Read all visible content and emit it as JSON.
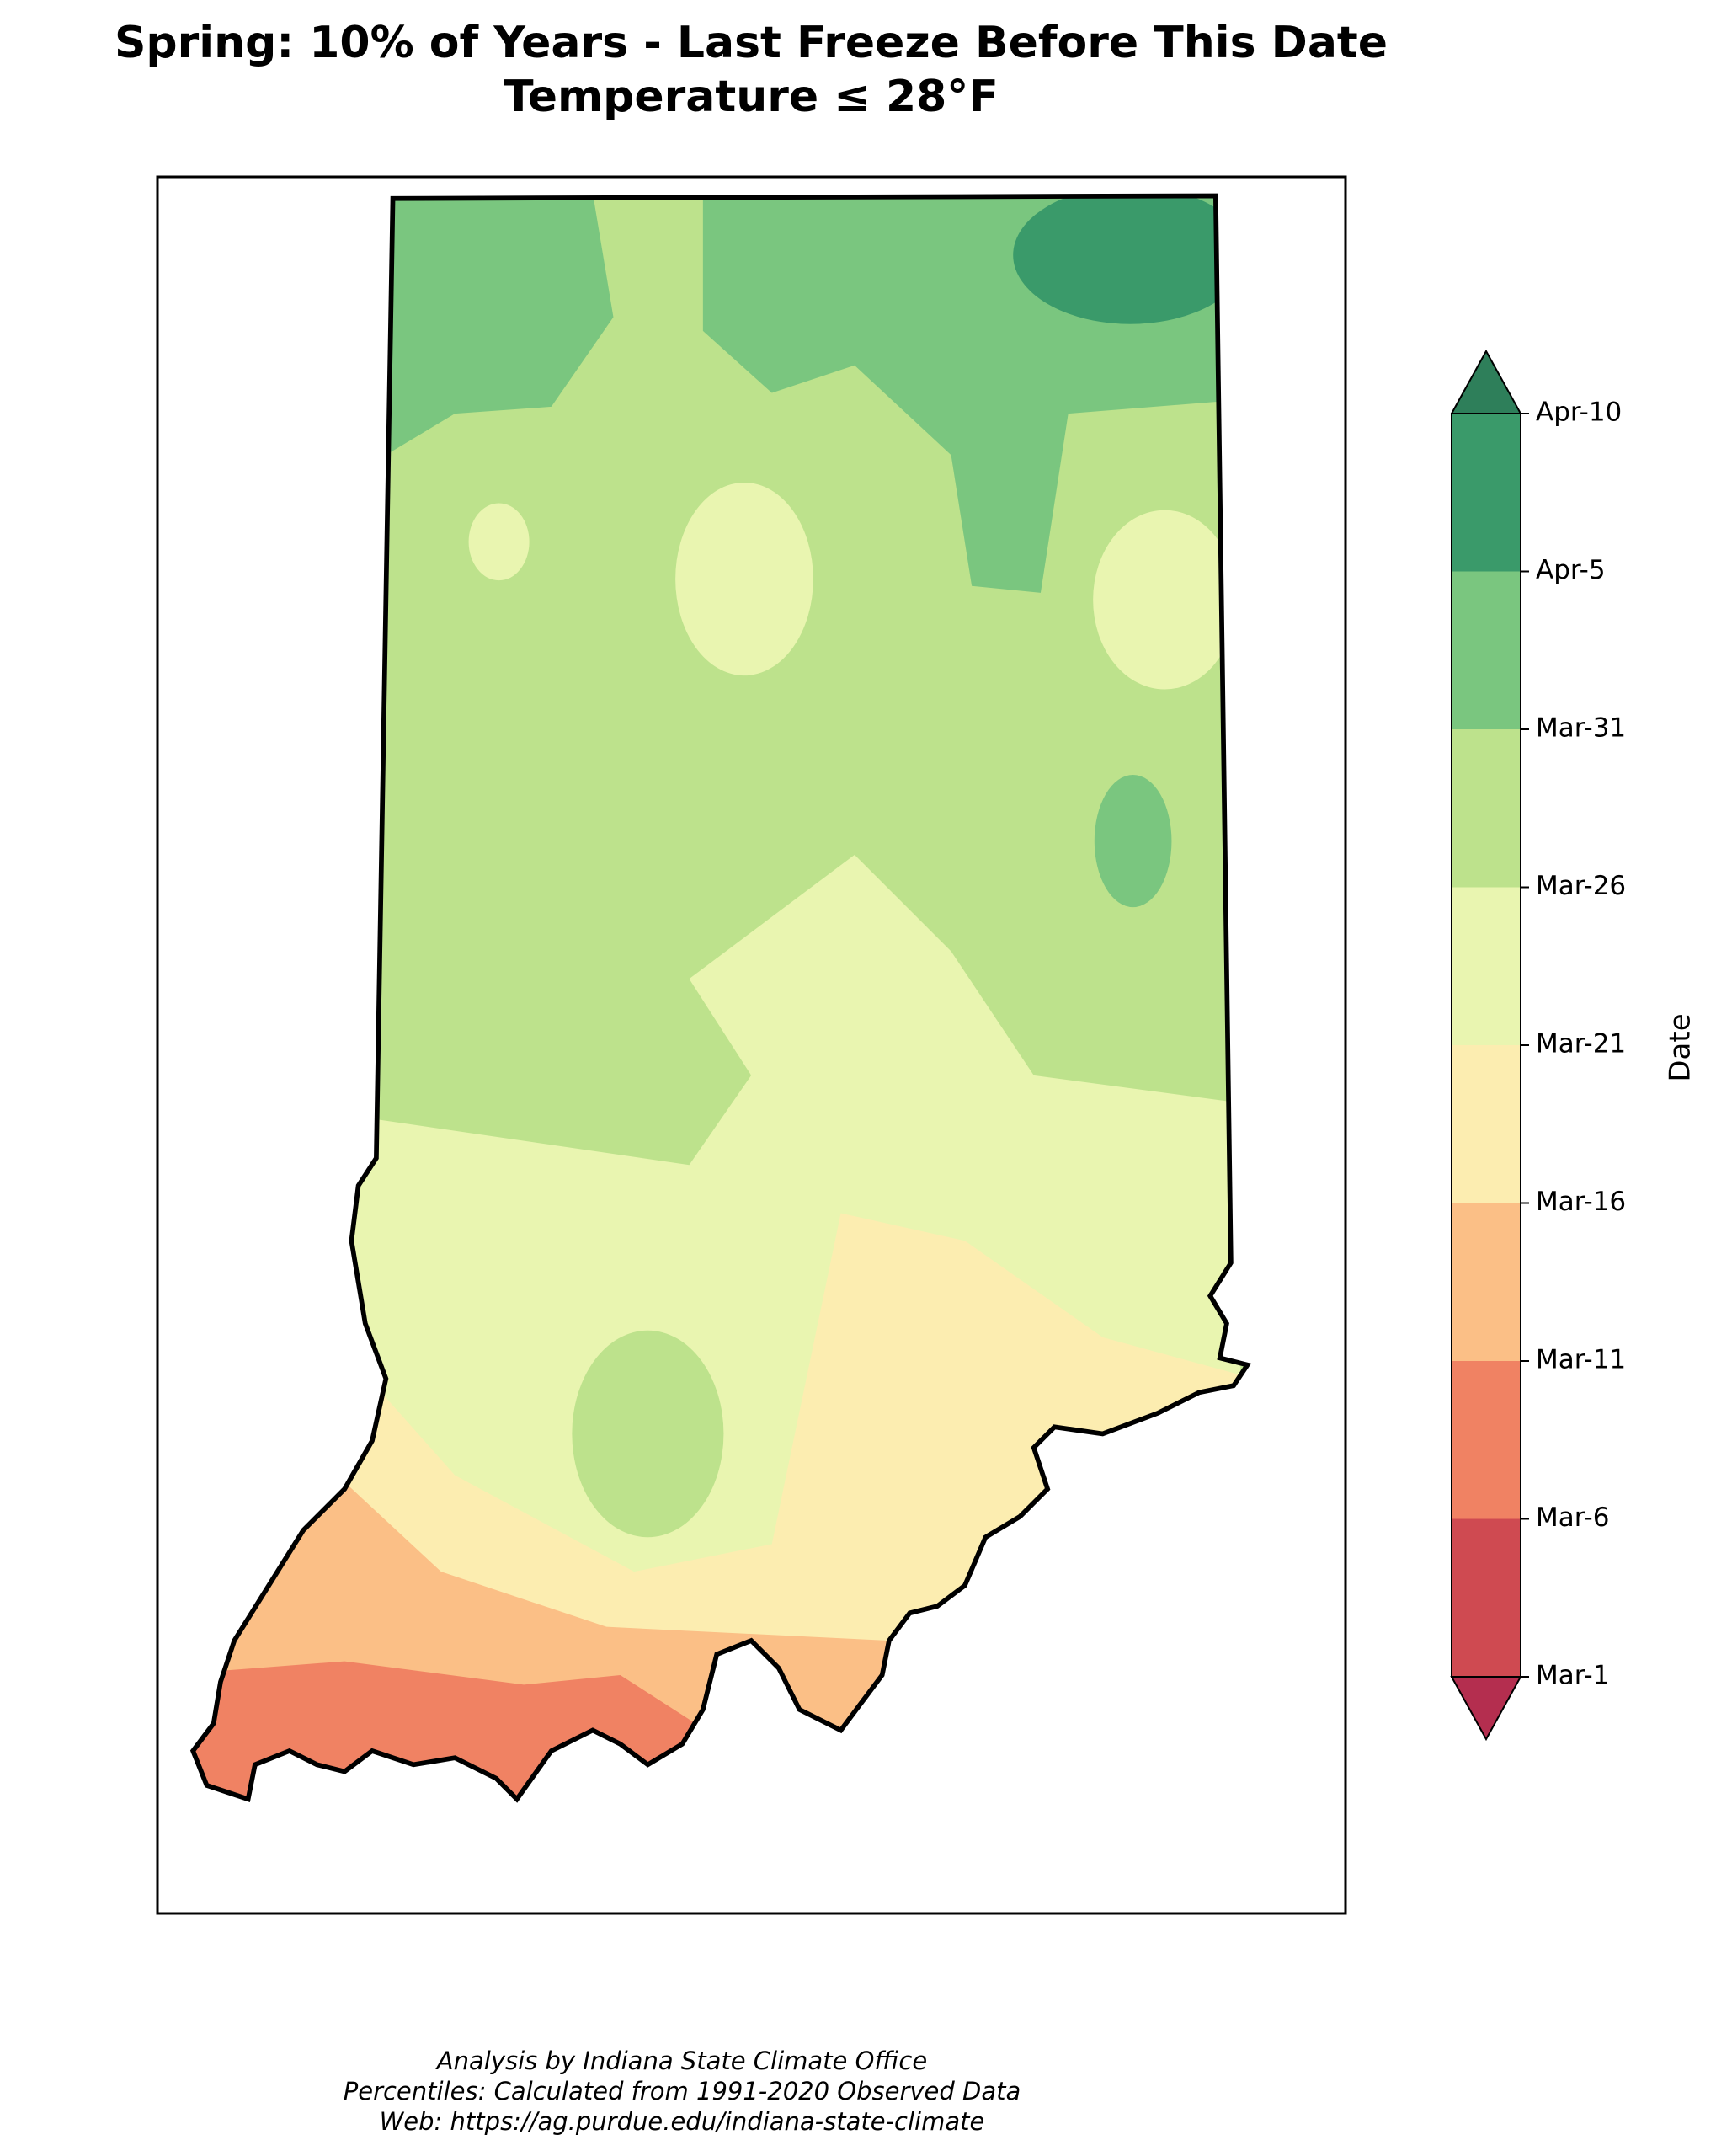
{
  "title": [
    "Spring: 10% of Years - Last Freeze Before This Date",
    "Temperature ≤ 28°F"
  ],
  "colorbar": {
    "label": "Date",
    "ticks": [
      "Apr-10",
      "Apr-5",
      "Mar-31",
      "Mar-26",
      "Mar-21",
      "Mar-16",
      "Mar-11",
      "Mar-6",
      "Mar-1"
    ],
    "colors": [
      "#3a9a6a",
      "#7ac67f",
      "#bde28c",
      "#e9f5b0",
      "#fcedb0",
      "#fbbf86",
      "#f08263",
      "#cf4a51"
    ],
    "extend_colors": [
      "#2e7f5a",
      "#b42e4f"
    ]
  },
  "footer": [
    "Analysis by Indiana State Climate Office",
    "Percentiles: Calculated from 1991-2020 Observed Data",
    "Web: https://ag.purdue.edu/indiana-state-climate"
  ]
}
